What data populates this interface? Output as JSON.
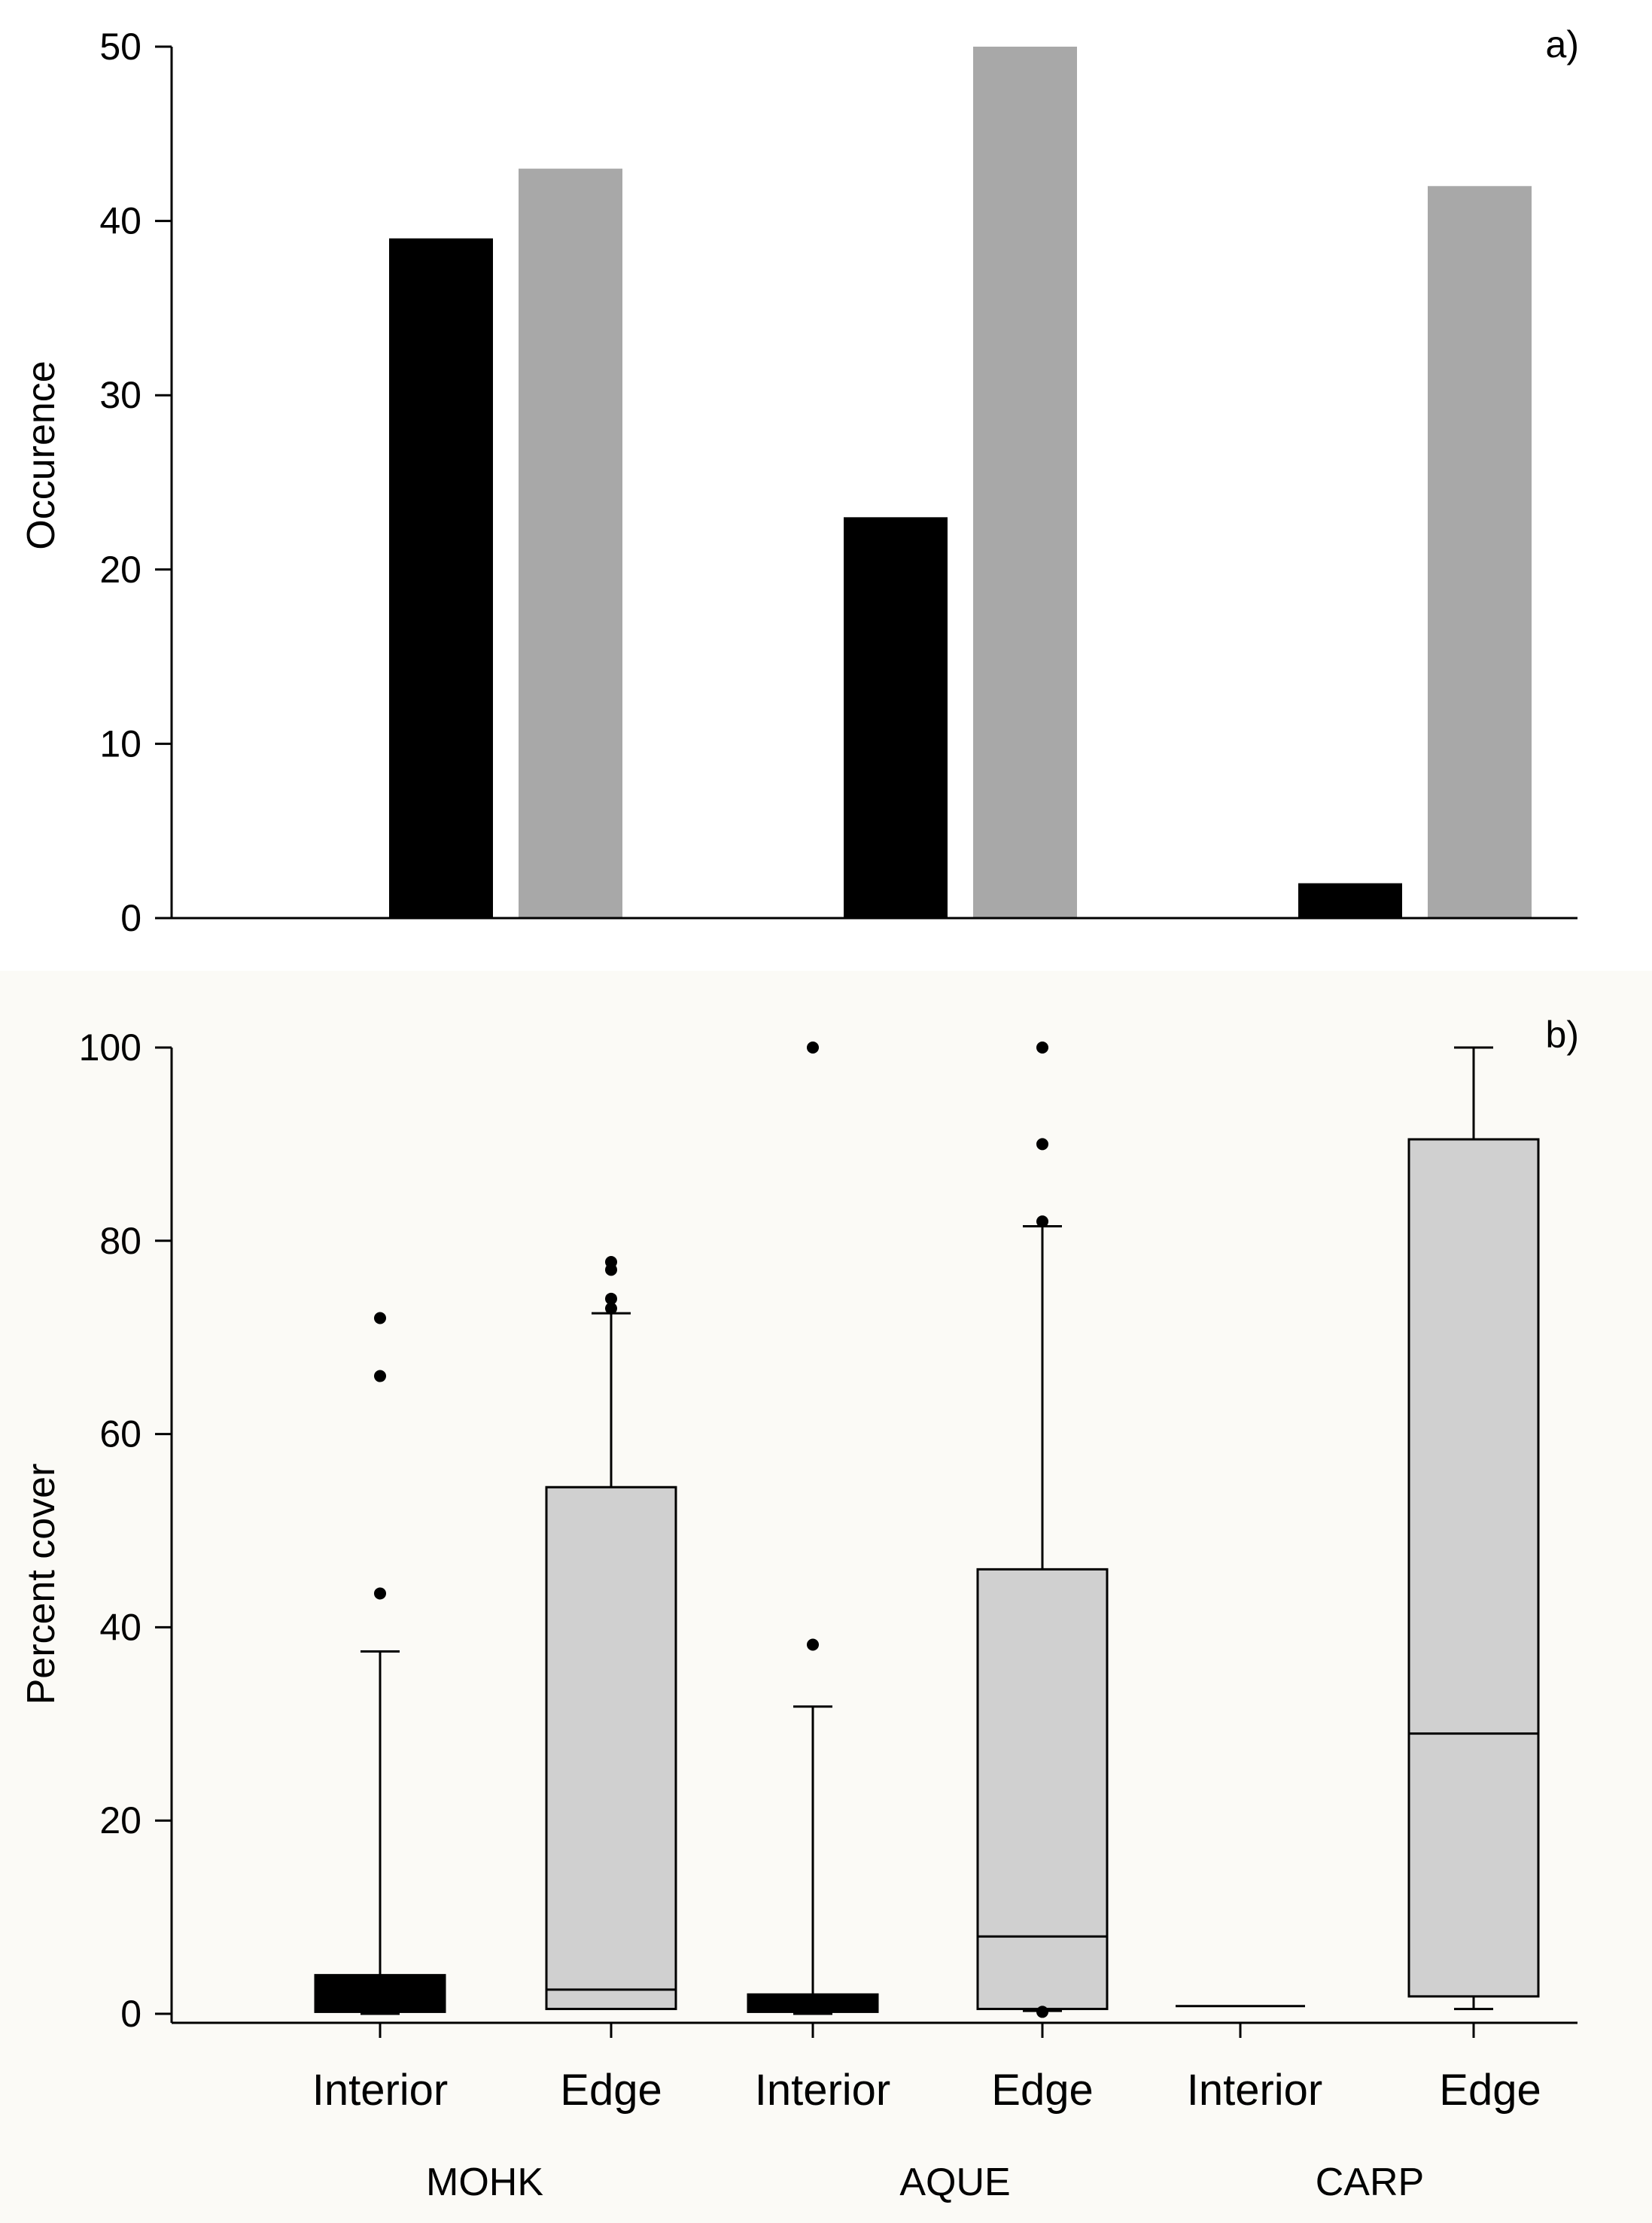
{
  "chart_data": [
    {
      "panel_label": "a)",
      "type": "bar",
      "ylabel": "Occurence",
      "ylim": [
        0,
        50
      ],
      "yticks": [
        0,
        10,
        20,
        30,
        40,
        50
      ],
      "groups": [
        "MOHK",
        "AQUE",
        "CARP"
      ],
      "series": [
        {
          "name": "Interior",
          "color": "#000000",
          "values": [
            39,
            23,
            2
          ]
        },
        {
          "name": "Edge",
          "color": "#a8a8a8",
          "values": [
            43,
            50,
            42
          ]
        }
      ]
    },
    {
      "panel_label": "b)",
      "type": "box",
      "ylabel": "Percent cover",
      "ylim": [
        0,
        100
      ],
      "yticks": [
        0,
        20,
        40,
        60,
        80,
        100
      ],
      "categories": [
        "Interior",
        "Edge",
        "Interior",
        "Edge",
        "Interior",
        "Edge"
      ],
      "groups": [
        "MOHK",
        "AQUE",
        "CARP"
      ],
      "boxes": [
        {
          "group": "MOHK",
          "category": "Interior",
          "color": "#000000",
          "whisker_low": 0,
          "q1": 0.2,
          "median": 0.2,
          "q3": 4,
          "whisker_high": 37.5,
          "outliers": [
            43.5,
            66,
            72
          ]
        },
        {
          "group": "MOHK",
          "category": "Edge",
          "color": "#d0d0d0",
          "whisker_low": 0.5,
          "q1": 0.5,
          "median": 2.5,
          "q3": 54.5,
          "whisker_high": 72.5,
          "outliers": [
            73,
            74,
            77,
            77.8
          ]
        },
        {
          "group": "AQUE",
          "category": "Interior",
          "color": "#000000",
          "whisker_low": 0,
          "q1": 0.2,
          "median": 0.2,
          "q3": 2,
          "whisker_high": 31.8,
          "outliers": [
            38.2,
            100
          ]
        },
        {
          "group": "AQUE",
          "category": "Edge",
          "color": "#d0d0d0",
          "whisker_low": 0.3,
          "q1": 0.5,
          "median": 8,
          "q3": 46,
          "whisker_high": 81.5,
          "outliers": [
            0.2,
            82,
            90,
            100
          ]
        },
        {
          "group": "CARP",
          "category": "Interior",
          "color": "#000000",
          "whisker_low": 0.8,
          "q1": 0.8,
          "median": 0.8,
          "q3": 0.8,
          "whisker_high": 0.8,
          "outliers": []
        },
        {
          "group": "CARP",
          "category": "Edge",
          "color": "#d0d0d0",
          "whisker_low": 0.5,
          "q1": 1.8,
          "median": 29,
          "q3": 90.5,
          "whisker_high": 100,
          "outliers": []
        }
      ]
    }
  ]
}
